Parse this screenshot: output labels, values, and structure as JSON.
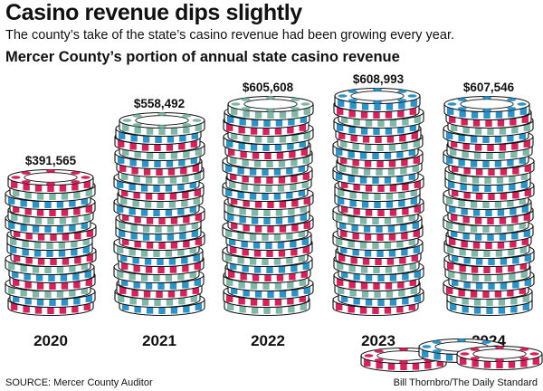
{
  "header": {
    "title": "Casino revenue dips slightly",
    "subtitle": "The county’s take of the state’s casino revenue had been growing every year.",
    "chart_title": "Mercer County’s portion of annual state casino revenue"
  },
  "footer": {
    "source": "SOURCE: Mercer County Auditor",
    "credit": "Bill Thornbro/The Daily Standard"
  },
  "colors": {
    "chip_red": "#d8215a",
    "chip_blue": "#2a93c9",
    "chip_teal": "#7fb8a8",
    "outline": "#111111",
    "face": "#ffffff"
  },
  "chart_data": {
    "type": "bar",
    "title": "Mercer County’s portion of annual state casino revenue",
    "categories": [
      "2020",
      "2021",
      "2022",
      "2023",
      "2024"
    ],
    "values": [
      391565,
      558492,
      605608,
      608993,
      607546
    ],
    "value_labels": [
      "$391,565",
      "$558,492",
      "$605,608",
      "$608,993",
      "$607,546"
    ],
    "bar_style": "stacked poker chips"
  }
}
